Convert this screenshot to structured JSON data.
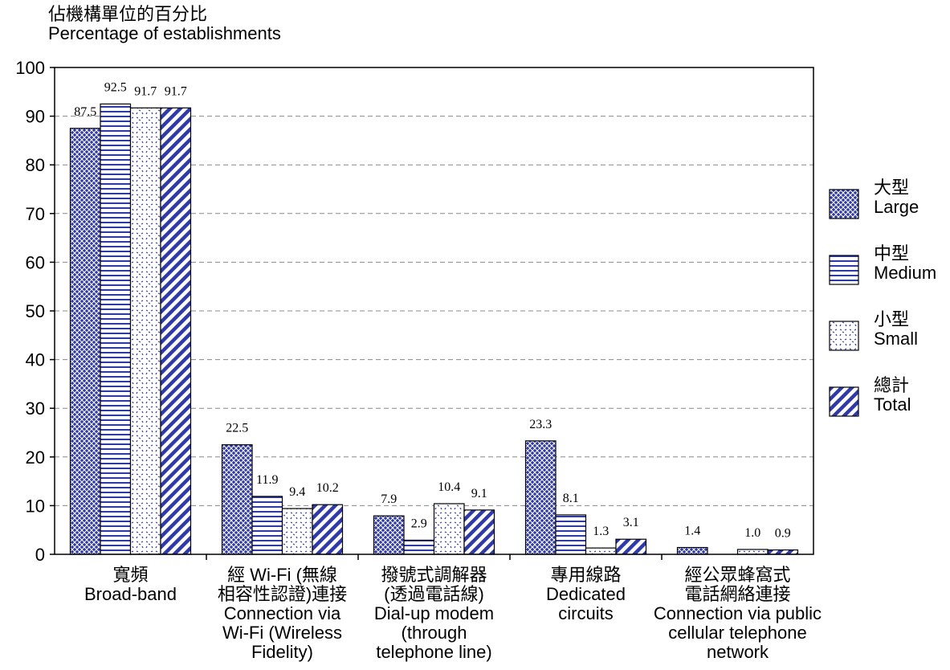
{
  "chart_data": {
    "type": "bar",
    "ylabel_zh": "佔機構單位的百分比",
    "ylabel_en": "Percentage of establishments",
    "ylim": [
      0,
      100
    ],
    "yticks": [
      0,
      10,
      20,
      30,
      40,
      50,
      60,
      70,
      80,
      90,
      100
    ],
    "grid": true,
    "legend_position": "right",
    "categories": [
      {
        "zh": [
          "寬頻"
        ],
        "en": [
          "Broad-band"
        ]
      },
      {
        "zh": [
          "經 Wi-Fi (無線",
          "相容性認證)連接"
        ],
        "en": [
          "Connection via",
          "Wi-Fi (Wireless",
          "Fidelity)"
        ]
      },
      {
        "zh": [
          "撥號式調解器",
          "(透過電話線)"
        ],
        "en": [
          "Dial-up modem",
          "(through",
          "telephone line)"
        ]
      },
      {
        "zh": [
          "專用線路"
        ],
        "en": [
          "Dedicated",
          "circuits"
        ]
      },
      {
        "zh": [
          "經公眾蜂窩式",
          "電話網絡連接"
        ],
        "en": [
          "Connection via public",
          "cellular telephone",
          "network"
        ]
      }
    ],
    "series": [
      {
        "name_zh": "大型",
        "name_en": "Large",
        "pattern": "crosshatch",
        "values": [
          87.5,
          22.5,
          7.9,
          23.3,
          1.4
        ],
        "labels": [
          "87.5",
          "22.5",
          "7.9",
          "23.3",
          "1.4"
        ]
      },
      {
        "name_zh": "中型",
        "name_en": "Medium",
        "pattern": "horizontal",
        "values": [
          92.5,
          11.9,
          2.9,
          8.1,
          null
        ],
        "labels": [
          "92.5",
          "11.9",
          "2.9",
          "8.1",
          ""
        ]
      },
      {
        "name_zh": "小型",
        "name_en": "Small",
        "pattern": "dots",
        "values": [
          91.7,
          9.4,
          10.4,
          1.3,
          1.0
        ],
        "labels": [
          "91.7",
          "9.4",
          "10.4",
          "1.3",
          "1.0"
        ]
      },
      {
        "name_zh": "總計",
        "name_en": "Total",
        "pattern": "diagonal",
        "values": [
          91.7,
          10.2,
          9.1,
          3.1,
          0.9
        ],
        "labels": [
          "91.7",
          "10.2",
          "9.1",
          "3.1",
          "0.9"
        ]
      }
    ],
    "colors": {
      "bar_fill": "#2f3aa8",
      "pattern_bg": "#ffffff",
      "axis": "#000000",
      "grid": "#888888"
    }
  }
}
